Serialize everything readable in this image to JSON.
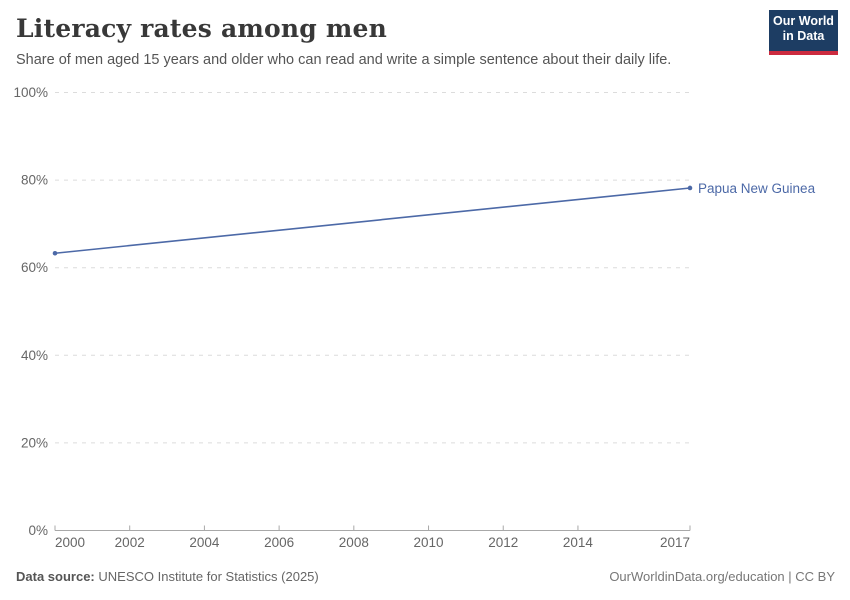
{
  "header": {
    "title": "Literacy rates among men",
    "subtitle": "Share of men aged 15 years and older who can read and write a simple sentence about their daily life.",
    "logo": {
      "line1": "Our World",
      "line2": "in Data"
    }
  },
  "chart_data": {
    "type": "line",
    "title": "Literacy rates among men",
    "xlabel": "",
    "ylabel": "",
    "xlim": [
      2000,
      2017
    ],
    "ylim": [
      0,
      100
    ],
    "x_ticks": [
      2000,
      2002,
      2004,
      2006,
      2008,
      2010,
      2012,
      2014,
      2017
    ],
    "y_ticks": [
      0,
      20,
      40,
      60,
      80,
      100
    ],
    "y_tick_suffix": "%",
    "grid": "horizontal-dashed",
    "legend_position": "right-end-label",
    "series": [
      {
        "name": "Papua New Guinea",
        "color": "#4c69a7",
        "x": [
          2000,
          2017
        ],
        "values": [
          63.3,
          78.2
        ],
        "end_markers": true
      }
    ]
  },
  "footer": {
    "source_label": "Data source:",
    "source_value": "UNESCO Institute for Statistics (2025)",
    "link_text": "OurWorldinData.org/education | CC BY"
  },
  "colors": {
    "line": "#4c69a7",
    "series_label": "#4c69a7",
    "grid": "#dcdcdc",
    "axis": "#a8a8a8",
    "tick_label": "#666666",
    "title": "#383838",
    "subtitle": "#555555",
    "logo_background": "#1d3d63",
    "logo_accent": "#cc2b3f"
  }
}
